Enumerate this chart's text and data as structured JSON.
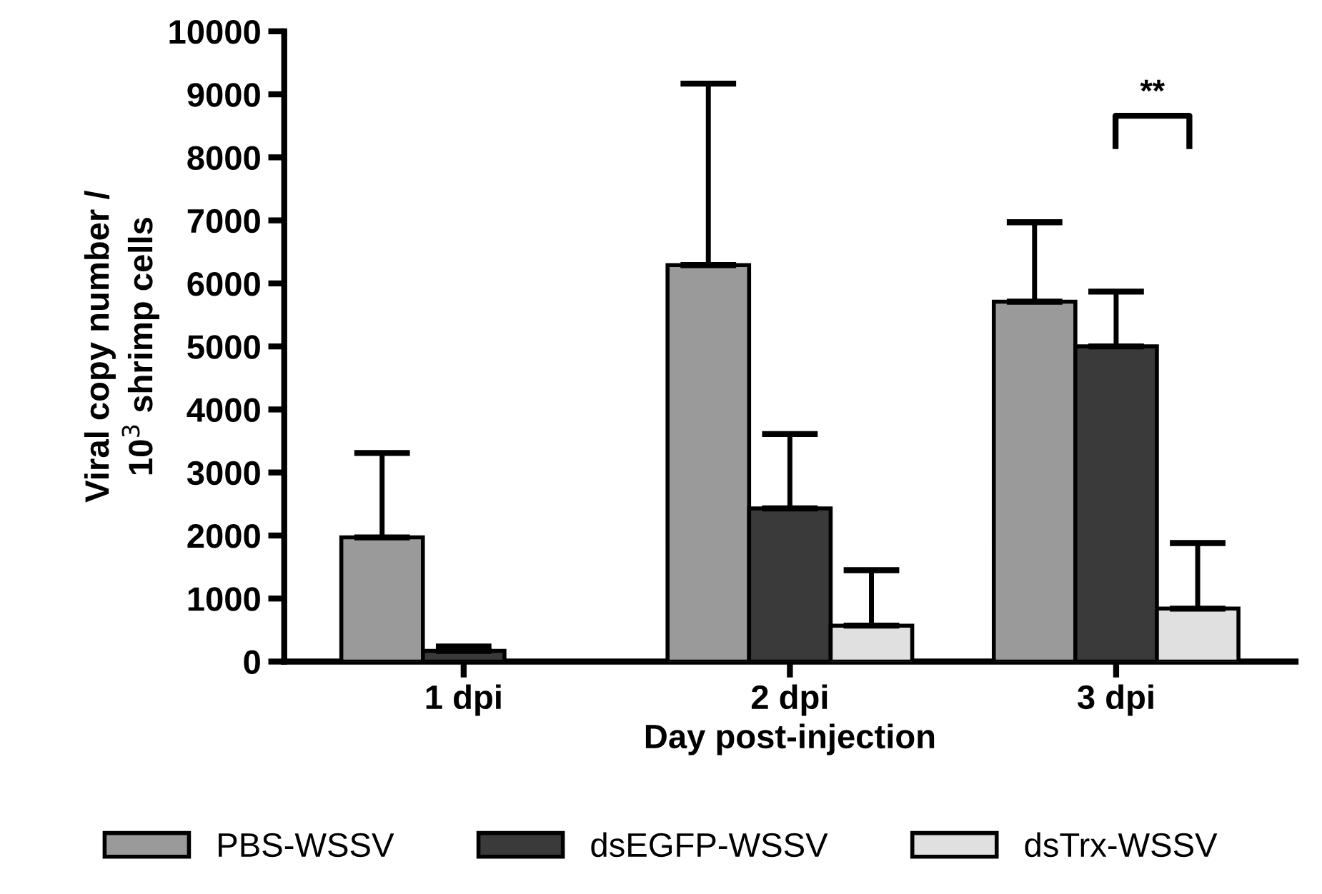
{
  "chart_data": {
    "type": "bar",
    "xlabel": "Day post-injection",
    "ylabel": "Viral copy number /\n10$^{3}$ shrimp cells",
    "categories": [
      "1 dpi",
      "2 dpi",
      "3 dpi"
    ],
    "series": [
      {
        "name": "PBS-WSSV",
        "color": "#9a9a9a",
        "values": [
          1970,
          6290,
          5710
        ],
        "errors": [
          [
            1970,
            3310
          ],
          [
            6290,
            9170
          ],
          [
            5710,
            6970
          ]
        ]
      },
      {
        "name": "dsEGFP-WSSV",
        "color": "#3a3a3a",
        "values": [
          170,
          2430,
          5000
        ],
        "errors": [
          [
            170,
            240
          ],
          [
            2430,
            3610
          ],
          [
            5000,
            5870
          ]
        ]
      },
      {
        "name": "dsTrx-WSSV",
        "color": "#e0e0e0",
        "values": [
          null,
          570,
          840
        ],
        "errors": [
          null,
          [
            570,
            1450
          ],
          [
            840,
            1880
          ]
        ]
      }
    ],
    "ylim": [
      0,
      10000
    ],
    "yticks": [
      0,
      1000,
      2000,
      3000,
      4000,
      5000,
      6000,
      7000,
      8000,
      9000,
      10000
    ],
    "grid": false,
    "legend": "bottom",
    "annotations": [
      "**"
    ]
  }
}
